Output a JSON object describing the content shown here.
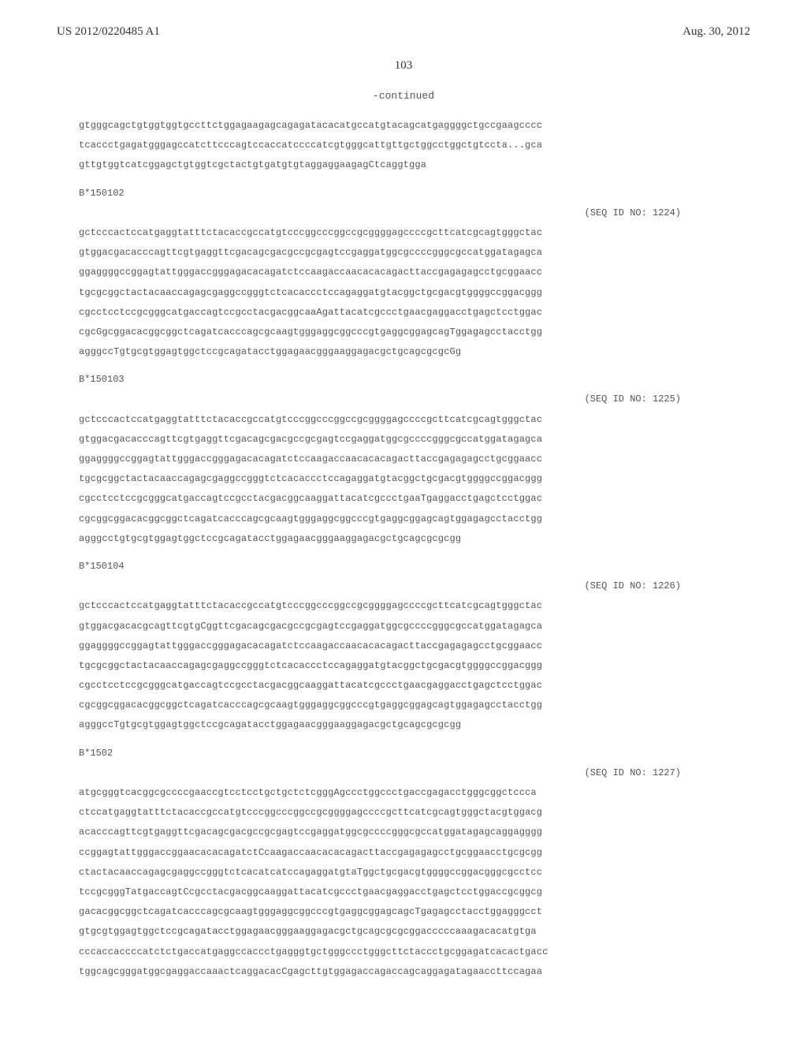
{
  "header": {
    "pub_number": "US 2012/0220485 A1",
    "pub_date": "Aug. 30, 2012"
  },
  "page_number": "103",
  "continued_label": "-continued",
  "blocks": [
    {
      "label": "",
      "seq_id": "",
      "lines": [
        "gtgggcagctgtggtggtgccttctggagaagagcagagatacacatgccatgtacagcatgaggggctgccgaagcccc",
        "tcaccctgagatgggagccatcttcccagtccaccatccccatcgtgggcattgttgctggcctggctgtccta...gca",
        "gttgtggtcatcggagctgtggtcgctactgtgatgtgtaggaggaagagCtcaggtgga"
      ]
    },
    {
      "label": "B*150102",
      "seq_id": "(SEQ ID NO: 1224)",
      "lines": [
        "gctcccactccatgaggtatttctacaccgccatgtcccggcccggccgcggggagccccgcttcatcgcagtgggctac",
        "gtggacgacacccagttcgtgaggttcgacagcgacgccgcgagtccgaggatggcgccccgggcgccatggatagagca",
        "ggaggggccggagtattgggaccgggagacacagatctccaagaccaacacacagacttaccgagagagcctgcggaacc",
        "tgcgcggctactacaaccagagcgaggccgggtctcacaccctccagaggatgtacggctgcgacgtggggccggacggg",
        "cgcctcctccgcgggcatgaccagtccgcctacgacggcaaAgattacatcgccctgaacgaggacctgagctcctggac",
        "cgcGgcggacacggcggctcagatcacccagcgcaagtgggaggcggcccgtgaggcggagcagTggagagcctacctgg",
        "agggccTgtgcgtggagtggctccgcagatacctggagaacgggaaggagacgctgcagcgcgcGg"
      ]
    },
    {
      "label": "B*150103",
      "seq_id": "(SEQ ID NO: 1225)",
      "lines": [
        "gctcccactccatgaggtatttctacaccgccatgtcccggcccggccgcggggagccccgcttcatcgcagtgggctac",
        "gtggacgacacccagttcgtgaggttcgacagcgacgccgcgagtccgaggatggcgccccgggcgccatggatagagca",
        "ggaggggccggagtattgggaccgggagacacagatctccaagaccaacacacagacttaccgagagagcctgcggaacc",
        "tgcgcggctactacaaccagagcgaggccgggtctcacaccctccagaggatgtacggctgcgacgtggggccggacggg",
        "cgcctcctccgcgggcatgaccagtccgcctacgacggcaaggattacatcgccctgaaTgaggacctgagctcctggac",
        "cgcggcggacacggcggctcagatcacccagcgcaagtgggaggcggcccgtgaggcggagcagtggagagcctacctgg",
        "agggcctgtgcgtggagtggctccgcagatacctggagaacgggaaggagacgctgcagcgcgcgg"
      ]
    },
    {
      "label": "B*150104",
      "seq_id": "(SEQ ID NO: 1226)",
      "lines": [
        "gctcccactccatgaggtatttctacaccgccatgtcccggcccggccgcggggagccccgcttcatcgcagtgggctac",
        "gtggacgacacgcagttcgtgCggttcgacagcgacgccgcgagtccgaggatggcgccccgggcgccatggatagagca",
        "ggaggggccggagtattgggaccgggagacacagatctccaagaccaacacacagacttaccgagagagcctgcggaacc",
        "tgcgcggctactacaaccagagcgaggccgggtctcacaccctccagaggatgtacggctgcgacgtggggccggacggg",
        "cgcctcctccgcgggcatgaccagtccgcctacgacggcaaggattacatcgccctgaacgaggacctgagctcctggac",
        "cgcggcggacacggcggctcagatcacccagcgcaagtgggaggcggcccgtgaggcggagcagtggagagcctacctgg",
        "agggccTgtgcgtggagtggctccgcagatacctggagaacgggaaggagacgctgcagcgcgcgg"
      ]
    },
    {
      "label": "B*1502",
      "seq_id": "(SEQ ID NO: 1227)",
      "lines": [
        "atgcgggtcacggcgccccgaaccgtcctcctgctgctctcgggAgccctggccctgaccgagacctgggcggctccca",
        "ctccatgaggtatttctacaccgccatgtcccggcccggccgcggggagccccgcttcatcgcagtgggctacgtggacg",
        "acacccagttcgtgaggttcgacagcgacgccgcgagtccgaggatggcgccccgggcgccatggatagagcaggagggg",
        "ccggagtattgggaccggaacacacagatctCcaagaccaacacacagacttaccgagagagcctgcggaacctgcgcgg",
        "ctactacaaccagagcgaggccgggtctcacatcatccagaggatgtaTggctgcgacgtggggccggacgggcgcctcc",
        "tccgcgggTatgaccagtCcgcctacgacggcaaggattacatcgccctgaacgaggacctgagctcctggaccgcggcg",
        "gacacggcggctcagatcacccagcgcaagtgggaggcggcccgtgaggcggagcagcTgagagcctacctggagggcct",
        "gtgcgtggagtggctccgcagatacctggagaacgggaaggagacgctgcagcgcgcggacccccaaagacacatgtga",
        "cccaccaccccatctctgaccatgaggccaccctgagggtgctgggccctgggcttctaccctgcggagatcacactgacc",
        "tggcagcgggatggcgaggaccaaactcaggacacCgagcttgtggagaccagaccagcaggagatagaaccttccagaa"
      ]
    }
  ]
}
